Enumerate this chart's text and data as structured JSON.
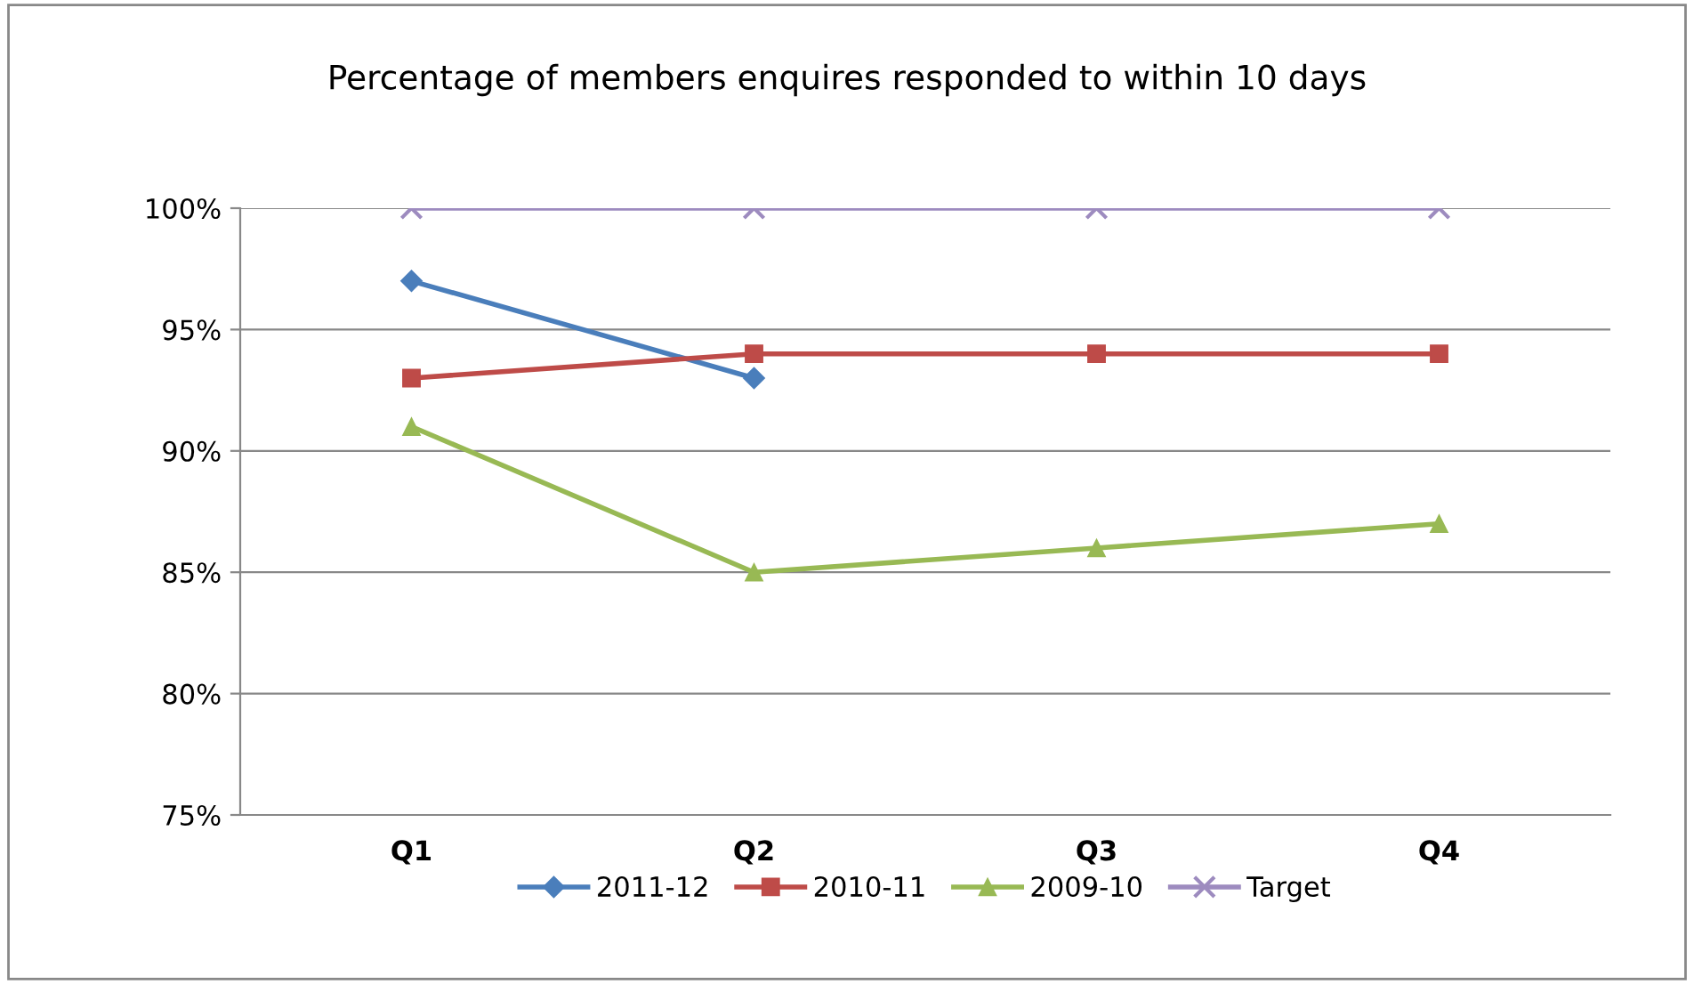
{
  "chart_data": {
    "type": "line",
    "title": "Percentage of members enquires responded to within 10 days",
    "categories": [
      "Q1",
      "Q2",
      "Q3",
      "Q4"
    ],
    "series": [
      {
        "name": "2011-12",
        "color": "#4a7ebb",
        "marker": "diamond",
        "values": [
          97,
          93,
          null,
          null
        ]
      },
      {
        "name": "2010-11",
        "color": "#be4b48",
        "marker": "square",
        "values": [
          93,
          94,
          94,
          94
        ]
      },
      {
        "name": "2009-10",
        "color": "#98b954",
        "marker": "triangle",
        "values": [
          91,
          85,
          86,
          87
        ]
      },
      {
        "name": "Target",
        "color": "#9d8bbf",
        "marker": "cross",
        "values": [
          100,
          100,
          100,
          100
        ]
      }
    ],
    "ylim": [
      75,
      100
    ],
    "yticks": [
      {
        "value": 75,
        "label": "75%"
      },
      {
        "value": 80,
        "label": "80%"
      },
      {
        "value": 85,
        "label": "85%"
      },
      {
        "value": 90,
        "label": "90%"
      },
      {
        "value": 95,
        "label": "95%"
      },
      {
        "value": 100,
        "label": "100%"
      }
    ],
    "grid": "y",
    "legend": "bottom",
    "line_style": "solid"
  }
}
